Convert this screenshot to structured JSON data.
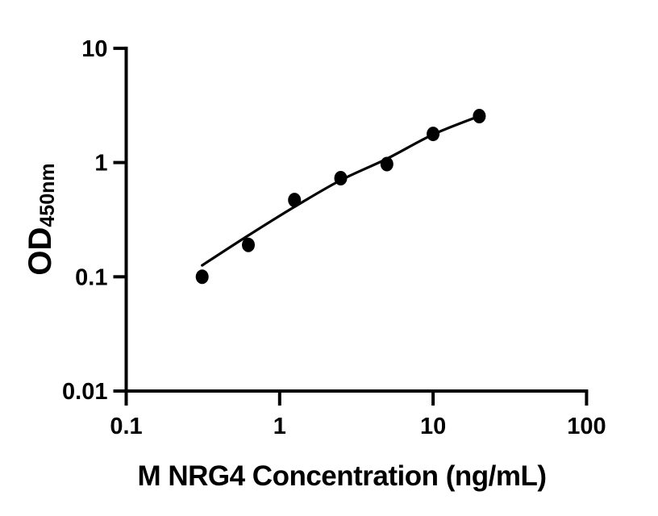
{
  "chart_data": {
    "type": "scatter",
    "title": "",
    "xlabel": "M NRG4 Concentration (ng/mL)",
    "ylabel": {
      "main": "OD",
      "sub": "450nm"
    },
    "x_scale": "log",
    "y_scale": "log",
    "xlim": [
      0.1,
      100
    ],
    "ylim": [
      0.01,
      10
    ],
    "grid": "off",
    "legend": "none",
    "x_ticks": [
      {
        "value": 0.1,
        "label": "0.1"
      },
      {
        "value": 1,
        "label": "1"
      },
      {
        "value": 10,
        "label": "10"
      },
      {
        "value": 100,
        "label": "100"
      }
    ],
    "y_ticks": [
      {
        "value": 10,
        "label": "10"
      },
      {
        "value": 1,
        "label": "1"
      },
      {
        "value": 0.1,
        "label": "0.1"
      },
      {
        "value": 0.01,
        "label": "0.01"
      }
    ],
    "series": [
      {
        "name": "standard-points",
        "type": "scatter",
        "marker": "filled-circle",
        "x": [
          0.3125,
          0.625,
          1.25,
          2.5,
          5,
          10,
          20
        ],
        "y": [
          0.1,
          0.19,
          0.47,
          0.73,
          0.97,
          1.78,
          2.55
        ]
      },
      {
        "name": "fit-curve",
        "type": "line",
        "x": [
          0.3125,
          0.625,
          1.25,
          2.5,
          5,
          10,
          20
        ],
        "y": [
          0.126,
          0.23,
          0.41,
          0.7,
          1.08,
          1.76,
          2.55
        ]
      }
    ],
    "colors": {
      "points": "#000000",
      "curve": "#000000",
      "axis": "#000000",
      "text": "#000000",
      "background": "#ffffff"
    }
  }
}
